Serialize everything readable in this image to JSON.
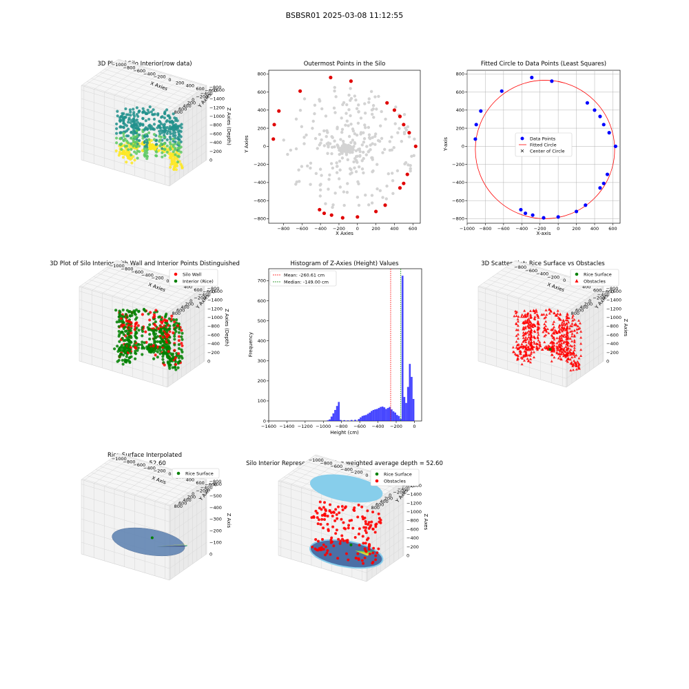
{
  "figure_title": "BSBSR01 2025-03-08 11:12:55",
  "chart_data": [
    {
      "id": "p1",
      "type": "scatter",
      "title": "3D Plot of Silo Interior(row data)",
      "xlabel": "X Axies",
      "ylabel": "Y Axies",
      "zlabel": "Z Axies (Depth)",
      "xticks": [
        "−1000",
        "−800",
        "−600",
        "−400",
        "−200",
        "0",
        "200",
        "400",
        "600"
      ],
      "yticks": [
        "800",
        "600",
        "400",
        "200",
        "0",
        "−200",
        "−400",
        "−600",
        "−800"
      ],
      "zticks": [
        "0",
        "−200",
        "−400",
        "−600",
        "−800",
        "−1000",
        "−1200",
        "−1400",
        "−1600"
      ],
      "xlim": [
        -1000,
        600
      ],
      "ylim": [
        -800,
        800
      ],
      "zlim": [
        -1600,
        0
      ],
      "colormap": "viridis"
    },
    {
      "id": "p2",
      "type": "scatter",
      "title": "Outermost Points in the Silo",
      "xlabel": "X Axies",
      "ylabel": "Y Axies",
      "xticks": [
        "−800",
        "−600",
        "−400",
        "−200",
        "0",
        "200",
        "400",
        "600"
      ],
      "yticks": [
        "800",
        "600",
        "400",
        "200",
        "0",
        "−200",
        "−400",
        "−600",
        "−800"
      ],
      "xlim": [
        -960,
        680
      ],
      "ylim": [
        -850,
        840
      ],
      "interior_color": "#d3d3d3",
      "outer_color": "#e00000",
      "outer_points": [
        [
          -290,
          760
        ],
        [
          -70,
          720
        ],
        [
          -620,
          610
        ],
        [
          -850,
          390
        ],
        [
          -900,
          240
        ],
        [
          -910,
          80
        ],
        [
          320,
          480
        ],
        [
          400,
          400
        ],
        [
          460,
          330
        ],
        [
          500,
          240
        ],
        [
          560,
          150
        ],
        [
          630,
          0
        ],
        [
          540,
          -310
        ],
        [
          500,
          -410
        ],
        [
          460,
          -460
        ],
        [
          300,
          -650
        ],
        [
          200,
          -720
        ],
        [
          0,
          -780
        ],
        [
          -160,
          -790
        ],
        [
          -280,
          -760
        ],
        [
          -360,
          -740
        ],
        [
          -410,
          -700
        ]
      ]
    },
    {
      "id": "p3",
      "type": "scatter",
      "title": "Fitted Circle to Data Points (Least Squares)",
      "xlabel": "X-axis",
      "ylabel": "Y-axis",
      "xticks": [
        "−1000",
        "−800",
        "−600",
        "−400",
        "−200",
        "0",
        "200",
        "400",
        "600"
      ],
      "yticks": [
        "800",
        "600",
        "400",
        "200",
        "0",
        "−200",
        "−400",
        "−600",
        "−800"
      ],
      "xlim": [
        -1000,
        680
      ],
      "ylim": [
        -850,
        840
      ],
      "grid": true,
      "legend": {
        "position": "center",
        "entries": [
          "Data Points",
          "Fitted Circle",
          "Center of Circle"
        ]
      },
      "data_points": [
        [
          -290,
          760
        ],
        [
          -70,
          720
        ],
        [
          -620,
          610
        ],
        [
          -850,
          390
        ],
        [
          -900,
          240
        ],
        [
          -910,
          80
        ],
        [
          320,
          480
        ],
        [
          400,
          400
        ],
        [
          460,
          330
        ],
        [
          500,
          240
        ],
        [
          560,
          150
        ],
        [
          630,
          0
        ],
        [
          540,
          -310
        ],
        [
          500,
          -410
        ],
        [
          460,
          -460
        ],
        [
          300,
          -650
        ],
        [
          200,
          -720
        ],
        [
          0,
          -780
        ],
        [
          -160,
          -790
        ],
        [
          -280,
          -760
        ],
        [
          -360,
          -740
        ],
        [
          -410,
          -700
        ]
      ],
      "circle": {
        "cx": -145,
        "cy": -35,
        "r": 765
      },
      "colors": {
        "points": "#0000ff",
        "circle": "#ff0000",
        "center": "#008000"
      }
    },
    {
      "id": "p4",
      "type": "scatter",
      "title": "3D Plot of Silo Interior with Wall and Interior Points Distinguished",
      "xlabel": "X Axies",
      "ylabel": "Y Axies",
      "zlabel": "Z Axies (Depth)",
      "xticks": [
        "−1000",
        "−800",
        "−600",
        "−400",
        "−200",
        "0",
        "200",
        "400",
        "600"
      ],
      "yticks": [
        "800",
        "600",
        "400",
        "200",
        "0",
        "−200",
        "−400",
        "−600",
        "−800"
      ],
      "zticks": [
        "0",
        "−200",
        "−400",
        "−600",
        "−800",
        "−1000",
        "−1200",
        "−1400",
        "−1600"
      ],
      "legend": {
        "position": "top-right",
        "entries": [
          "Silo Wall",
          "Interior (Rice)"
        ]
      },
      "colors": {
        "wall": "#ff0000",
        "interior": "#008000"
      }
    },
    {
      "id": "p5",
      "type": "bar",
      "title": "Histogram of Z-Axies (Height) Values",
      "xlabel": "Height (cm)",
      "ylabel": "Frequency",
      "xticks": [
        "−1600",
        "−1400",
        "−1200",
        "−1000",
        "−800",
        "−600",
        "−400",
        "−200",
        "0"
      ],
      "yticks": [
        "0",
        "100",
        "200",
        "300",
        "400",
        "500",
        "600",
        "700"
      ],
      "xlim": [
        -1600,
        80
      ],
      "ylim": [
        0,
        760
      ],
      "bin_width": 20,
      "bins": [
        [
          -960,
          3
        ],
        [
          -940,
          8
        ],
        [
          -920,
          22
        ],
        [
          -900,
          38
        ],
        [
          -880,
          55
        ],
        [
          -860,
          75
        ],
        [
          -840,
          95
        ],
        [
          -820,
          5
        ],
        [
          -780,
          4
        ],
        [
          -740,
          3
        ],
        [
          -700,
          5
        ],
        [
          -660,
          6
        ],
        [
          -620,
          10
        ],
        [
          -600,
          18
        ],
        [
          -580,
          25
        ],
        [
          -560,
          28
        ],
        [
          -540,
          30
        ],
        [
          -520,
          36
        ],
        [
          -500,
          42
        ],
        [
          -480,
          50
        ],
        [
          -460,
          55
        ],
        [
          -440,
          58
        ],
        [
          -420,
          60
        ],
        [
          -400,
          65
        ],
        [
          -380,
          70
        ],
        [
          -360,
          72
        ],
        [
          -340,
          68
        ],
        [
          -320,
          60
        ],
        [
          -300,
          65
        ],
        [
          -280,
          70
        ],
        [
          -260,
          58
        ],
        [
          -240,
          48
        ],
        [
          -220,
          42
        ],
        [
          -200,
          30
        ],
        [
          -180,
          25
        ],
        [
          -160,
          10
        ],
        [
          -140,
          725
        ],
        [
          -120,
          120
        ],
        [
          -100,
          90
        ],
        [
          -80,
          170
        ],
        [
          -60,
          285
        ],
        [
          -40,
          220
        ],
        [
          -20,
          110
        ]
      ],
      "mean": -260.61,
      "median": -149.0,
      "legend": {
        "position": "top-left",
        "entries": [
          "Mean: -260.61 cm",
          "Median: -149.00 cm"
        ]
      },
      "colors": {
        "bars": "#0000ff",
        "mean": "#ff0000",
        "median": "#008000"
      }
    },
    {
      "id": "p6",
      "type": "scatter",
      "title": "3D Scatter Plot: Rice Surface vs Obstacles",
      "xlabel": "X Axies",
      "ylabel": "Y Axies",
      "zlabel": "Z Axies",
      "xticks": [
        "−800",
        "−600",
        "−400",
        "−200",
        "0",
        "200",
        "400",
        "600"
      ],
      "yticks": [
        "800",
        "600",
        "400",
        "200",
        "0",
        "−200",
        "−400",
        "−600",
        "−800"
      ],
      "zticks": [
        "0",
        "−200",
        "−400",
        "−600",
        "−800",
        "−1000",
        "−1200",
        "−1400",
        "−1600"
      ],
      "legend": {
        "position": "top-right",
        "entries": [
          "Rice Surface",
          "Obstacles"
        ]
      },
      "colors": {
        "surface": "#008000",
        "obstacles": "#ff0000"
      }
    },
    {
      "id": "p7",
      "type": "area",
      "title": "Rice Surface Interpolated",
      "subtitle": "depth = 52.60",
      "xlabel": "X Axis",
      "ylabel": "Y Axis",
      "zlabel": "Z Axis",
      "xticks": [
        "−1000",
        "−800",
        "−600",
        "−400",
        "−200",
        "0",
        "200",
        "400",
        "600"
      ],
      "yticks": [
        "800",
        "600",
        "400",
        "200",
        "0",
        "−200",
        "−400",
        "−600",
        "−800"
      ],
      "zticks": [
        "0",
        "−100",
        "−200",
        "−300",
        "−400",
        "−500",
        "−600"
      ],
      "legend": {
        "position": "top-right",
        "entries": [
          "Rice Surface"
        ]
      },
      "colors": {
        "surface": "#008000"
      }
    },
    {
      "id": "p8",
      "type": "scatter",
      "title": "Silo Interior Representation using weighted average depth = 52.60",
      "xlabel": "X Axes",
      "ylabel": "Y Axes",
      "zlabel": "Z Axes",
      "xticks": [
        "−1000",
        "−800",
        "−600",
        "−400",
        "−200",
        "0",
        "200",
        "400",
        "600"
      ],
      "yticks": [
        "800",
        "600",
        "400",
        "200",
        "0",
        "−200",
        "−400",
        "−600",
        "−800"
      ],
      "zticks": [
        "0",
        "−200",
        "−400",
        "−600",
        "−800",
        "−1000",
        "−1200",
        "−1400",
        "−1600"
      ],
      "legend": {
        "position": "top-right",
        "entries": [
          "Rice Surface",
          "Obstacles"
        ]
      },
      "colors": {
        "cylinder": "#87ceeb",
        "surface": "#008000",
        "obstacles": "#ff0000"
      }
    }
  ]
}
